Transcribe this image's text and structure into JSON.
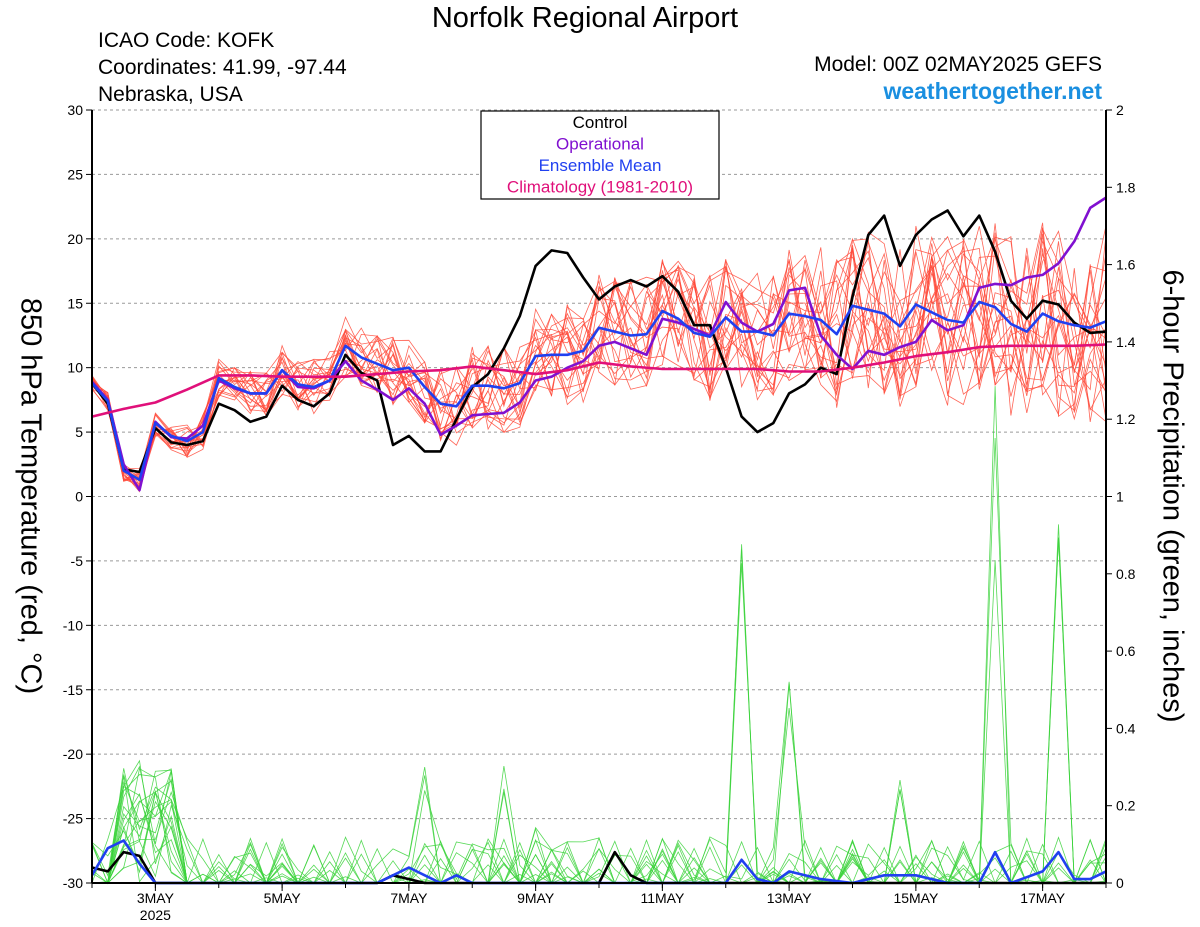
{
  "header": {
    "title": "Norfolk Regional Airport",
    "icao": "ICAO Code: KOFK",
    "coords": "Coordinates: 41.99, -97.44",
    "region": "Nebraska, USA",
    "model": "Model: 00Z 02MAY2025 GEFS",
    "website": "weathertogether.net"
  },
  "chart_data": {
    "type": "line",
    "title": "Norfolk Regional Airport",
    "ylabel_left": "850 hPa Temperature (red, °C)",
    "ylabel_right": "6-hour Precipitation (green, inches)",
    "ylim_left": [
      -30,
      30
    ],
    "ylim_right": [
      0,
      2
    ],
    "y_ticks_left": [
      "30",
      "25",
      "20",
      "15",
      "10",
      "5",
      "0",
      "-5",
      "-10",
      "-15",
      "-20",
      "-25",
      "-30"
    ],
    "y_ticks_right": [
      "2",
      "1.8",
      "1.6",
      "1.4",
      "1.2",
      "1",
      "0.8",
      "0.6",
      "0.4",
      "0.2",
      "0"
    ],
    "x_ticks": [
      {
        "label": "3MAY",
        "sub": "2025",
        "day": 3
      },
      {
        "label": "5MAY",
        "day": 5
      },
      {
        "label": "7MAY",
        "day": 7
      },
      {
        "label": "9MAY",
        "day": 9
      },
      {
        "label": "11MAY",
        "day": 11
      },
      {
        "label": "13MAY",
        "day": 13
      },
      {
        "label": "15MAY",
        "day": 15
      },
      {
        "label": "17MAY",
        "day": 17
      }
    ],
    "x_range_days": [
      2.0,
      18.0
    ],
    "legend": [
      {
        "label": "Control",
        "color": "#000000"
      },
      {
        "label": "Operational",
        "color": "#8010d0"
      },
      {
        "label": "Ensemble Mean",
        "color": "#2040f0"
      },
      {
        "label": "Climatology (1981-2010)",
        "color": "#e0107a"
      }
    ],
    "series": [
      {
        "name": "Control",
        "color": "#000000",
        "axis": "left",
        "x": [
          2.0,
          2.25,
          2.5,
          2.75,
          3.0,
          3.25,
          3.5,
          3.75,
          4.0,
          4.25,
          4.5,
          4.75,
          5.0,
          5.25,
          5.5,
          5.75,
          6.0,
          6.25,
          6.5,
          6.75,
          7.0,
          7.25,
          7.5,
          7.75,
          8.0,
          8.25,
          8.5,
          8.75,
          9.0,
          9.25,
          9.5,
          9.75,
          10.0,
          10.25,
          10.5,
          10.75,
          11.0,
          11.25,
          11.5,
          11.75,
          12.0,
          12.25,
          12.5,
          12.75,
          13.0,
          13.25,
          13.5,
          13.75,
          14.0,
          14.25,
          14.5,
          14.75,
          15.0,
          15.25,
          15.5,
          15.75,
          16.0,
          16.25,
          16.5,
          16.75,
          17.0,
          17.25,
          17.5,
          17.75,
          18.0
        ],
        "values": [
          8.8,
          7.2,
          2.1,
          1.9,
          5.3,
          4.2,
          4.0,
          4.3,
          7.2,
          6.7,
          5.8,
          6.2,
          8.6,
          7.5,
          7.0,
          8.0,
          11.0,
          9.6,
          9.0,
          4.0,
          4.7,
          3.5,
          3.5,
          6.0,
          8.5,
          9.5,
          11.5,
          14.0,
          17.9,
          19.1,
          18.9,
          17.0,
          15.3,
          16.3,
          16.8,
          16.3,
          17.1,
          15.9,
          13.3,
          13.3,
          10.0,
          6.2,
          5.0,
          5.7,
          8.0,
          8.7,
          10.0,
          9.5,
          15.5,
          20.3,
          21.8,
          17.9,
          20.3,
          21.5,
          22.2,
          20.2,
          21.8,
          19.0,
          15.2,
          13.8,
          15.2,
          14.9,
          13.5,
          12.7,
          12.8
        ]
      },
      {
        "name": "Operational",
        "color": "#8010d0",
        "axis": "left",
        "x": [
          2.0,
          2.25,
          2.5,
          2.75,
          3.0,
          3.25,
          3.5,
          3.75,
          4.0,
          4.25,
          4.5,
          4.75,
          5.0,
          5.25,
          5.5,
          5.75,
          6.0,
          6.25,
          6.5,
          6.75,
          7.0,
          7.25,
          7.5,
          7.75,
          8.0,
          8.25,
          8.5,
          8.75,
          9.0,
          9.25,
          9.5,
          9.75,
          10.0,
          10.25,
          10.5,
          10.75,
          11.0,
          11.25,
          11.5,
          11.75,
          12.0,
          12.25,
          12.5,
          12.75,
          13.0,
          13.25,
          13.5,
          13.75,
          14.0,
          14.25,
          14.5,
          14.75,
          15.0,
          15.25,
          15.5,
          15.75,
          16.0,
          16.25,
          16.5,
          16.75,
          17.0,
          17.25,
          17.5,
          17.75,
          18.0
        ],
        "values": [
          8.9,
          7.5,
          2.5,
          0.5,
          5.8,
          4.6,
          4.5,
          5.5,
          9.0,
          8.4,
          8.0,
          8.0,
          9.8,
          8.5,
          8.4,
          9.0,
          10.5,
          9.0,
          8.3,
          7.5,
          8.4,
          7.2,
          4.8,
          5.5,
          6.3,
          6.4,
          6.5,
          7.3,
          9.0,
          9.3,
          10.0,
          10.5,
          11.7,
          12.0,
          11.5,
          11.0,
          13.8,
          13.5,
          13.0,
          12.5,
          15.1,
          13.5,
          12.8,
          13.4,
          16.0,
          16.2,
          12.5,
          11.0,
          9.9,
          11.3,
          11.0,
          11.6,
          12.0,
          13.7,
          12.9,
          13.3,
          16.2,
          16.5,
          16.4,
          17.0,
          17.2,
          18.1,
          19.8,
          22.4,
          23.2
        ]
      },
      {
        "name": "Ensemble Mean",
        "color": "#2040f0",
        "axis": "left",
        "x": [
          2.0,
          2.25,
          2.5,
          2.75,
          3.0,
          3.25,
          3.5,
          3.75,
          4.0,
          4.25,
          4.5,
          4.75,
          5.0,
          5.25,
          5.5,
          5.75,
          6.0,
          6.25,
          6.5,
          6.75,
          7.0,
          7.25,
          7.5,
          7.75,
          8.0,
          8.25,
          8.5,
          8.75,
          9.0,
          9.25,
          9.5,
          9.75,
          10.0,
          10.25,
          10.5,
          10.75,
          11.0,
          11.25,
          11.5,
          11.75,
          12.0,
          12.25,
          12.5,
          12.75,
          13.0,
          13.25,
          13.5,
          13.75,
          14.0,
          14.25,
          14.5,
          14.75,
          15.0,
          15.25,
          15.5,
          15.75,
          16.0,
          16.25,
          16.5,
          16.75,
          17.0,
          17.25,
          17.5,
          17.75,
          18.0
        ],
        "values": [
          8.8,
          7.4,
          2.0,
          1.3,
          5.7,
          4.7,
          4.3,
          5.0,
          9.2,
          8.5,
          8.0,
          8.0,
          9.8,
          8.7,
          8.5,
          9.0,
          11.7,
          10.8,
          10.3,
          9.8,
          10.0,
          8.5,
          7.2,
          7.0,
          8.6,
          8.6,
          8.4,
          8.8,
          10.9,
          11.0,
          11.0,
          11.3,
          13.1,
          12.8,
          12.5,
          12.6,
          14.4,
          13.8,
          12.7,
          12.4,
          13.9,
          12.8,
          12.8,
          12.5,
          14.2,
          14.0,
          13.7,
          12.6,
          14.8,
          14.5,
          14.2,
          13.2,
          14.9,
          14.3,
          13.7,
          13.5,
          15.1,
          14.7,
          13.4,
          12.8,
          14.2,
          13.6,
          13.3,
          13.1,
          13.6
        ]
      },
      {
        "name": "Climatology (1981-2010)",
        "color": "#e0107a",
        "axis": "left",
        "x": [
          2.0,
          2.5,
          3.0,
          3.5,
          4.0,
          4.5,
          5.0,
          5.5,
          6.0,
          6.5,
          7.0,
          7.5,
          8.0,
          8.5,
          9.0,
          9.5,
          10.0,
          10.5,
          11.0,
          11.5,
          12.0,
          12.5,
          13.0,
          13.5,
          14.0,
          14.5,
          15.0,
          15.5,
          16.0,
          16.5,
          17.0,
          17.5,
          18.0
        ],
        "values": [
          6.2,
          6.8,
          7.3,
          8.3,
          9.4,
          9.4,
          9.3,
          9.3,
          9.3,
          9.5,
          9.7,
          9.8,
          10.1,
          9.8,
          9.5,
          9.8,
          10.4,
          10.1,
          9.9,
          9.9,
          9.9,
          9.9,
          9.7,
          9.7,
          10.0,
          10.4,
          10.9,
          11.2,
          11.6,
          11.7,
          11.7,
          11.7,
          11.8
        ]
      },
      {
        "name": "Control",
        "color": "#000000",
        "axis": "right",
        "x": [
          2.0,
          2.25,
          2.5,
          2.75,
          3.0,
          3.25,
          3.5,
          3.75,
          4.0,
          4.5,
          5.0,
          5.5,
          6.0,
          6.5,
          6.75,
          7.0,
          7.25,
          7.5,
          7.75,
          8.0,
          8.5,
          9.0,
          9.5,
          10.0,
          10.25,
          10.5,
          10.75,
          11.0,
          11.5,
          12.0,
          12.5,
          13.0,
          13.5,
          14.0,
          14.5,
          15.0,
          15.5,
          16.0,
          16.5,
          17.0,
          17.5,
          18.0
        ],
        "values": [
          0.04,
          0.03,
          0.08,
          0.07,
          0.0,
          0.0,
          0.0,
          0.0,
          0.0,
          0.0,
          0.0,
          0.0,
          0.0,
          0.0,
          0.02,
          0.01,
          0.0,
          0.0,
          0.0,
          0.0,
          0.0,
          0.0,
          0.0,
          0.0,
          0.08,
          0.02,
          0.0,
          0.0,
          0.0,
          0.0,
          0.0,
          0.0,
          0.0,
          0.0,
          0.0,
          0.0,
          0.0,
          0.0,
          0.0,
          0.0,
          0.0,
          0.0
        ]
      },
      {
        "name": "Ensemble Mean",
        "color": "#2040f0",
        "axis": "right",
        "x": [
          2.0,
          2.25,
          2.5,
          2.75,
          3.0,
          3.25,
          3.5,
          3.75,
          4.0,
          4.5,
          5.0,
          5.5,
          6.0,
          6.5,
          6.75,
          7.0,
          7.25,
          7.5,
          7.75,
          8.0,
          8.5,
          9.0,
          9.5,
          10.0,
          10.5,
          11.0,
          11.5,
          12.0,
          12.25,
          12.5,
          12.75,
          13.0,
          13.5,
          14.0,
          14.5,
          15.0,
          15.5,
          16.0,
          16.25,
          16.5,
          17.0,
          17.25,
          17.5,
          17.75,
          18.0
        ],
        "values": [
          0.02,
          0.09,
          0.11,
          0.05,
          0.0,
          0.0,
          0.0,
          0.0,
          0.0,
          0.0,
          0.0,
          0.0,
          0.0,
          0.0,
          0.02,
          0.04,
          0.02,
          0.0,
          0.02,
          0.0,
          0.0,
          0.0,
          0.0,
          0.0,
          0.0,
          0.0,
          0.0,
          0.0,
          0.06,
          0.01,
          0.0,
          0.03,
          0.01,
          0.0,
          0.02,
          0.02,
          0.0,
          0.0,
          0.08,
          0.0,
          0.03,
          0.08,
          0.01,
          0.01,
          0.03
        ]
      }
    ]
  }
}
